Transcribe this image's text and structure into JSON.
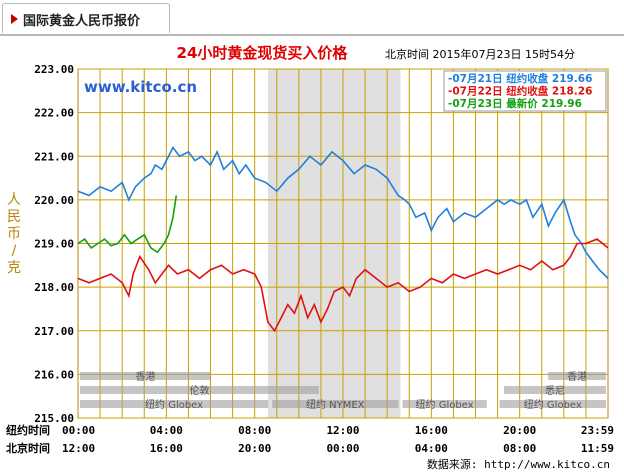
{
  "tab": {
    "label": "国际黄金人民币报价"
  },
  "watermark": "www.kitco.cn",
  "source": "数据来源: http://www.kitco.cn",
  "chart_data": {
    "type": "line",
    "title": "24小时黄金现货买入价格",
    "datetime": "北京时间  2015年07月23日 15时54分",
    "ylabel": "人民币/克",
    "ylim": [
      215,
      223
    ],
    "yticks": [
      "223.00",
      "222.00",
      "221.00",
      "220.00",
      "219.00",
      "218.00",
      "217.00",
      "216.00",
      "215.00"
    ],
    "xlim": [
      0,
      24
    ],
    "ny_label": "纽约时间",
    "bj_label": "北京时间",
    "ny_ticks": [
      "00:00",
      "04:00",
      "08:00",
      "12:00",
      "16:00",
      "20:00",
      "23:59"
    ],
    "bj_ticks": [
      "12:00",
      "16:00",
      "20:00",
      "00:00",
      "04:00",
      "08:00",
      "11:59"
    ],
    "tick_hours": [
      0,
      4,
      8,
      12,
      16,
      20,
      24
    ],
    "shade": [
      8.6,
      14.6
    ],
    "legend": [
      {
        "label": "-07月21日 纽约收盘 219.66",
        "color": "#1e7fe0"
      },
      {
        "label": "-07月22日 纽约收盘 218.26",
        "color": "#e01010"
      },
      {
        "label": "-07月23日  最新价 219.96",
        "color": "#10a010"
      }
    ],
    "sessions": [
      {
        "label": "香港",
        "start": 0,
        "end": 6.1,
        "row": 0
      },
      {
        "label": "伦敦",
        "start": 0,
        "end": 11.0,
        "row": 1
      },
      {
        "label": "纽约 Globex",
        "start": 0,
        "end": 8.7,
        "row": 2
      },
      {
        "label": "纽约 NYMEX",
        "start": 8.7,
        "end": 14.6,
        "row": 2
      },
      {
        "label": "纽约 Globex",
        "start": 14.6,
        "end": 18.6,
        "row": 2
      },
      {
        "label": "香港",
        "start": 21.2,
        "end": 24,
        "row": 0
      },
      {
        "label": "悉尼",
        "start": 19.2,
        "end": 24,
        "row": 1
      },
      {
        "label": "纽约 Globex",
        "start": 19.0,
        "end": 24,
        "row": 2
      }
    ],
    "series": [
      {
        "color": "#1e7fe0",
        "x": [
          0,
          0.5,
          1,
          1.5,
          2,
          2.3,
          2.6,
          3.0,
          3.3,
          3.5,
          3.8,
          4.0,
          4.3,
          4.6,
          5.0,
          5.3,
          5.6,
          6.0,
          6.3,
          6.6,
          7.0,
          7.3,
          7.6,
          8.0,
          8.5,
          9.0,
          9.5,
          10.0,
          10.5,
          11.0,
          11.5,
          12.0,
          12.5,
          13.0,
          13.5,
          14.0,
          14.5,
          14.8,
          15.0,
          15.3,
          15.7,
          16.0,
          16.3,
          16.7,
          17.0,
          17.5,
          18.0,
          18.5,
          19.0,
          19.3,
          19.6,
          20.0,
          20.3,
          20.6,
          21.0,
          21.3,
          21.6,
          22.0,
          22.3,
          22.5,
          22.8,
          23.0,
          23.3,
          23.6,
          23.8,
          24.0
        ],
        "values": [
          220.2,
          220.1,
          220.3,
          220.2,
          220.4,
          220.0,
          220.3,
          220.5,
          220.6,
          220.8,
          220.7,
          220.9,
          221.2,
          221.0,
          221.1,
          220.9,
          221.0,
          220.8,
          221.1,
          220.7,
          220.9,
          220.6,
          220.8,
          220.5,
          220.4,
          220.2,
          220.5,
          220.7,
          221.0,
          220.8,
          221.1,
          220.9,
          220.6,
          220.8,
          220.7,
          220.5,
          220.1,
          220.0,
          219.9,
          219.6,
          219.7,
          219.3,
          219.6,
          219.8,
          219.5,
          219.7,
          219.6,
          219.8,
          220.0,
          219.9,
          220.0,
          219.9,
          220.0,
          219.6,
          219.9,
          219.4,
          219.7,
          220.0,
          219.5,
          219.2,
          219.0,
          218.8,
          218.6,
          218.4,
          218.3,
          218.2
        ]
      },
      {
        "color": "#e01010",
        "x": [
          0,
          0.5,
          1,
          1.5,
          2.0,
          2.3,
          2.5,
          2.8,
          3.2,
          3.5,
          3.8,
          4.1,
          4.5,
          5.0,
          5.5,
          6.0,
          6.5,
          7.0,
          7.5,
          8.0,
          8.3,
          8.6,
          8.9,
          9.2,
          9.5,
          9.8,
          10.1,
          10.4,
          10.7,
          11.0,
          11.3,
          11.6,
          12.0,
          12.3,
          12.6,
          13.0,
          13.5,
          14.0,
          14.5,
          15.0,
          15.5,
          16.0,
          16.5,
          17.0,
          17.5,
          18.0,
          18.5,
          19.0,
          19.5,
          20.0,
          20.5,
          21.0,
          21.5,
          22.0,
          22.3,
          22.6,
          23.0,
          23.5,
          24.0
        ],
        "values": [
          218.2,
          218.1,
          218.2,
          218.3,
          218.1,
          217.8,
          218.3,
          218.7,
          218.4,
          218.1,
          218.3,
          218.5,
          218.3,
          218.4,
          218.2,
          218.4,
          218.5,
          218.3,
          218.4,
          218.3,
          218.0,
          217.2,
          217.0,
          217.3,
          217.6,
          217.4,
          217.8,
          217.3,
          217.6,
          217.2,
          217.5,
          217.9,
          218.0,
          217.8,
          218.2,
          218.4,
          218.2,
          218.0,
          218.1,
          217.9,
          218.0,
          218.2,
          218.1,
          218.3,
          218.2,
          218.3,
          218.4,
          218.3,
          218.4,
          218.5,
          218.4,
          218.6,
          218.4,
          218.5,
          218.7,
          219.0,
          219.0,
          219.1,
          218.9
        ]
      },
      {
        "color": "#10a010",
        "x": [
          0,
          0.3,
          0.6,
          0.9,
          1.2,
          1.5,
          1.8,
          2.1,
          2.4,
          2.7,
          3.0,
          3.3,
          3.6,
          3.9,
          4.1,
          4.3,
          4.45
        ],
        "values": [
          219.0,
          219.1,
          218.9,
          219.0,
          219.1,
          218.95,
          219.0,
          219.2,
          219.0,
          219.1,
          219.2,
          218.9,
          218.8,
          219.0,
          219.2,
          219.6,
          220.1
        ]
      }
    ]
  }
}
